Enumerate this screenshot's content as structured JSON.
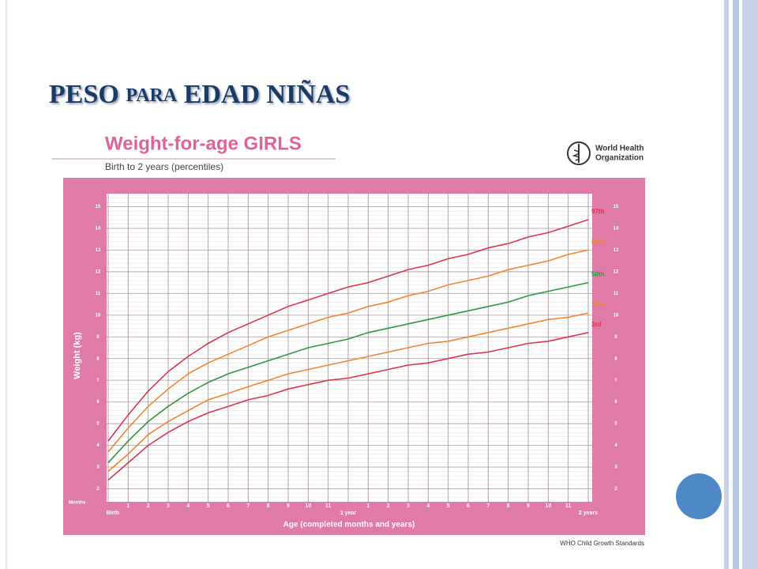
{
  "slide": {
    "title_parts": [
      "PESO ",
      "PARA",
      " EDAD NIÑAS"
    ]
  },
  "chart_data": {
    "type": "line",
    "title": "Weight-for-age GIRLS",
    "subtitle": "Birth to 2 years (percentiles)",
    "organization": [
      "World Health",
      "Organization"
    ],
    "y_label": "Weight (kg)",
    "x_label": "Age (completed months and years)",
    "x_unit_label": "Months",
    "source": "WHO Child Growth Standards",
    "x": [
      0,
      1,
      2,
      3,
      4,
      5,
      6,
      7,
      8,
      9,
      10,
      11,
      12,
      13,
      14,
      15,
      16,
      17,
      18,
      19,
      20,
      21,
      22,
      23,
      24
    ],
    "xlim": [
      0,
      24
    ],
    "xticks": [
      {
        "value": 0,
        "label": "Birth"
      },
      1,
      2,
      3,
      4,
      5,
      6,
      7,
      8,
      9,
      10,
      11,
      {
        "value": 12,
        "label": "1 year"
      },
      {
        "value": 13,
        "label": "1"
      },
      {
        "value": 14,
        "label": "2"
      },
      {
        "value": 15,
        "label": "3"
      },
      {
        "value": 16,
        "label": "4"
      },
      {
        "value": 17,
        "label": "5"
      },
      {
        "value": 18,
        "label": "6"
      },
      {
        "value": 19,
        "label": "7"
      },
      {
        "value": 20,
        "label": "8"
      },
      {
        "value": 21,
        "label": "9"
      },
      {
        "value": 22,
        "label": "10"
      },
      {
        "value": 23,
        "label": "11"
      },
      {
        "value": 24,
        "label": "2 years"
      }
    ],
    "ylim": [
      1.4,
      15.6
    ],
    "yticks": [
      2,
      3,
      4,
      5,
      6,
      7,
      8,
      9,
      10,
      11,
      12,
      13,
      14,
      15
    ],
    "grid": true,
    "series": [
      {
        "name": "97th",
        "color": "#d9364e",
        "values": [
          4.2,
          5.4,
          6.5,
          7.4,
          8.1,
          8.7,
          9.2,
          9.6,
          10.0,
          10.4,
          10.7,
          11.0,
          11.3,
          11.5,
          11.8,
          12.1,
          12.3,
          12.6,
          12.8,
          13.1,
          13.3,
          13.6,
          13.8,
          14.1,
          14.4
        ]
      },
      {
        "name": "85th",
        "color": "#f0862e",
        "values": [
          3.7,
          4.8,
          5.8,
          6.6,
          7.3,
          7.8,
          8.2,
          8.6,
          9.0,
          9.3,
          9.6,
          9.9,
          10.1,
          10.4,
          10.6,
          10.9,
          11.1,
          11.4,
          11.6,
          11.8,
          12.1,
          12.3,
          12.5,
          12.8,
          13.0
        ]
      },
      {
        "name": "50th",
        "color": "#2e9a3c",
        "values": [
          3.2,
          4.2,
          5.1,
          5.8,
          6.4,
          6.9,
          7.3,
          7.6,
          7.9,
          8.2,
          8.5,
          8.7,
          8.9,
          9.2,
          9.4,
          9.6,
          9.8,
          10.0,
          10.2,
          10.4,
          10.6,
          10.9,
          11.1,
          11.3,
          11.5
        ]
      },
      {
        "name": "15th",
        "color": "#f0862e",
        "values": [
          2.8,
          3.6,
          4.5,
          5.1,
          5.6,
          6.1,
          6.4,
          6.7,
          7.0,
          7.3,
          7.5,
          7.7,
          7.9,
          8.1,
          8.3,
          8.5,
          8.7,
          8.8,
          9.0,
          9.2,
          9.4,
          9.6,
          9.8,
          9.9,
          10.1
        ]
      },
      {
        "name": "3rd",
        "color": "#d9364e",
        "values": [
          2.4,
          3.2,
          4.0,
          4.6,
          5.1,
          5.5,
          5.8,
          6.1,
          6.3,
          6.6,
          6.8,
          7.0,
          7.1,
          7.3,
          7.5,
          7.7,
          7.8,
          8.0,
          8.2,
          8.3,
          8.5,
          8.7,
          8.8,
          9.0,
          9.2
        ]
      }
    ]
  }
}
